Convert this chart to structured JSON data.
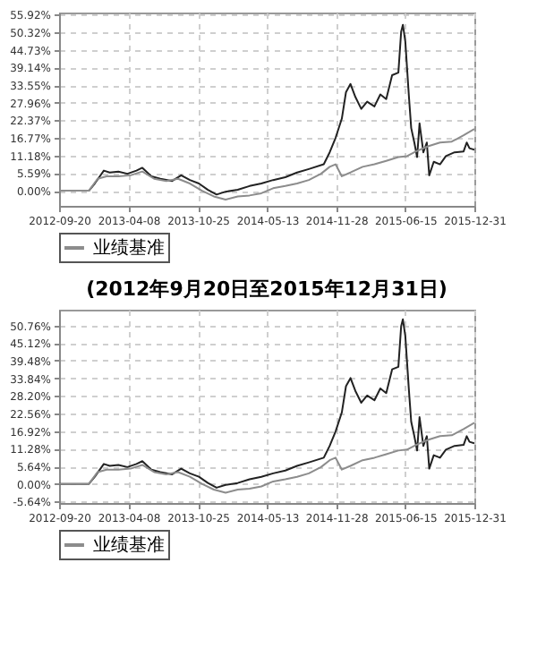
{
  "chart_data": [
    {
      "type": "line",
      "xlim": [
        "2012-09-20",
        "2015-12-31"
      ],
      "xticks": [
        "2012-09-20",
        "2013-04-08",
        "2013-10-25",
        "2014-05-13",
        "2014-11-28",
        "2015-06-15",
        "2015-12-31"
      ],
      "ylim": [
        -4.8,
        56.6
      ],
      "yticks": [
        {
          "value": 0,
          "label": "0.00%"
        },
        {
          "value": 5.59,
          "label": "5.59%"
        },
        {
          "value": 11.18,
          "label": "11.18%"
        },
        {
          "value": 16.77,
          "label": "16.77%"
        },
        {
          "value": 22.37,
          "label": "22.37%"
        },
        {
          "value": 27.96,
          "label": "27.96%"
        },
        {
          "value": 33.55,
          "label": "33.55%"
        },
        {
          "value": 39.14,
          "label": "39.14%"
        },
        {
          "value": 44.73,
          "label": "44.73%"
        },
        {
          "value": 50.32,
          "label": "50.32%"
        },
        {
          "value": 55.92,
          "label": "55.92%"
        }
      ],
      "grid": true,
      "legend": "bottom",
      "series": [
        {
          "color": "#222222",
          "x": [
            "2012-09-20",
            "2012-12-15",
            "2013-01-01",
            "2013-01-27",
            "2013-02-13",
            "2013-03-10",
            "2013-04-05",
            "2013-05-01",
            "2013-05-18",
            "2013-06-13",
            "2013-07-09",
            "2013-08-12",
            "2013-09-07",
            "2013-10-02",
            "2013-10-28",
            "2013-11-23",
            "2013-12-18",
            "2014-01-13",
            "2014-02-17",
            "2014-03-23",
            "2014-04-26",
            "2014-05-30",
            "2014-07-04",
            "2014-08-07",
            "2014-09-10",
            "2014-10-23",
            "2014-11-09",
            "2014-11-26",
            "2014-12-14",
            "2014-12-26",
            "2015-01-08",
            "2015-01-22",
            "2015-02-08",
            "2015-02-25",
            "2015-03-18",
            "2015-04-04",
            "2015-04-21",
            "2015-05-08",
            "2015-05-26",
            "2015-06-03",
            "2015-06-08",
            "2015-06-15",
            "2015-06-25",
            "2015-07-02",
            "2015-07-11",
            "2015-07-19",
            "2015-07-26",
            "2015-08-06",
            "2015-08-16",
            "2015-08-23",
            "2015-09-05",
            "2015-09-23",
            "2015-10-10",
            "2015-11-04",
            "2015-11-30",
            "2015-12-09",
            "2015-12-17",
            "2015-12-31"
          ],
          "values": [
            0,
            0,
            2.3,
            6.4,
            5.8,
            6.1,
            5.4,
            6.4,
            7.3,
            4.6,
            3.8,
            3.1,
            4.9,
            3.4,
            2.3,
            0.3,
            -1.2,
            -0.3,
            0.3,
            1.5,
            2.3,
            3.4,
            4.3,
            5.8,
            6.9,
            8.4,
            12.2,
            16.8,
            22.9,
            31.3,
            33.9,
            29.8,
            26.0,
            28.3,
            26.8,
            30.6,
            29.1,
            36.7,
            37.5,
            50.5,
            52.7,
            47.4,
            30.6,
            19.9,
            15.3,
            10.7,
            21.4,
            12.2,
            15.3,
            4.9,
            9.2,
            8.4,
            11.0,
            12.2,
            12.5,
            15.3,
            13.5,
            13.0
          ]
        },
        {
          "name": "业绩基准",
          "color": "#8c8c8c",
          "x": [
            "2012-09-20",
            "2012-12-15",
            "2013-01-09",
            "2013-02-04",
            "2013-03-10",
            "2013-04-14",
            "2013-05-18",
            "2013-06-21",
            "2013-07-26",
            "2013-08-29",
            "2013-10-02",
            "2013-11-06",
            "2013-12-10",
            "2014-01-13",
            "2014-02-17",
            "2014-03-23",
            "2014-04-26",
            "2014-05-30",
            "2014-07-04",
            "2014-08-07",
            "2014-09-10",
            "2014-10-15",
            "2014-11-09",
            "2014-11-26",
            "2014-12-14",
            "2015-01-08",
            "2015-02-12",
            "2015-03-18",
            "2015-04-21",
            "2015-05-26",
            "2015-06-20",
            "2015-07-16",
            "2015-08-19",
            "2015-09-23",
            "2015-10-27",
            "2015-11-30",
            "2015-12-31"
          ],
          "values": [
            0,
            0,
            3.8,
            4.6,
            4.6,
            4.9,
            6.1,
            3.8,
            3.1,
            3.8,
            2.3,
            0,
            -1.8,
            -2.8,
            -1.8,
            -1.5,
            -0.8,
            0.8,
            1.5,
            2.3,
            3.4,
            5.4,
            7.6,
            8.4,
            4.6,
            5.8,
            7.6,
            8.4,
            9.5,
            10.7,
            11.0,
            12.5,
            14.1,
            15.3,
            15.6,
            17.6,
            19.6
          ]
        }
      ]
    },
    {
      "type": "line",
      "subtitle": "(2012年9月20日至2015年12月31日)",
      "xlim": [
        "2012-09-20",
        "2015-12-31"
      ],
      "xticks": [
        "2012-09-20",
        "2013-04-08",
        "2013-10-25",
        "2014-05-13",
        "2014-11-28",
        "2015-06-15",
        "2015-12-31"
      ],
      "ylim": [
        -6.1,
        55.8
      ],
      "yticks": [
        {
          "value": -5.64,
          "label": "-5.64%"
        },
        {
          "value": 0,
          "label": "0.00%"
        },
        {
          "value": 5.64,
          "label": "5.64%"
        },
        {
          "value": 11.28,
          "label": "11.28%"
        },
        {
          "value": 16.92,
          "label": "16.92%"
        },
        {
          "value": 22.56,
          "label": "22.56%"
        },
        {
          "value": 28.2,
          "label": "28.20%"
        },
        {
          "value": 33.84,
          "label": "33.84%"
        },
        {
          "value": 39.48,
          "label": "39.48%"
        },
        {
          "value": 45.12,
          "label": "45.12%"
        },
        {
          "value": 50.76,
          "label": "50.76%"
        }
      ],
      "grid": true,
      "legend": "bottom",
      "series": [
        {
          "color": "#222222",
          "x": [
            "2012-09-20",
            "2012-12-15",
            "2013-01-01",
            "2013-01-27",
            "2013-02-13",
            "2013-03-10",
            "2013-04-05",
            "2013-05-01",
            "2013-05-18",
            "2013-06-13",
            "2013-07-09",
            "2013-08-12",
            "2013-09-07",
            "2013-10-02",
            "2013-10-28",
            "2013-11-23",
            "2013-12-18",
            "2014-01-13",
            "2014-02-17",
            "2014-03-23",
            "2014-04-26",
            "2014-05-30",
            "2014-07-04",
            "2014-08-07",
            "2014-09-10",
            "2014-10-23",
            "2014-11-09",
            "2014-11-26",
            "2014-12-14",
            "2014-12-26",
            "2015-01-08",
            "2015-01-22",
            "2015-02-08",
            "2015-02-25",
            "2015-03-18",
            "2015-04-04",
            "2015-04-21",
            "2015-05-08",
            "2015-05-26",
            "2015-06-03",
            "2015-06-08",
            "2015-06-15",
            "2015-06-25",
            "2015-07-02",
            "2015-07-11",
            "2015-07-19",
            "2015-07-26",
            "2015-08-06",
            "2015-08-16",
            "2015-08-23",
            "2015-09-05",
            "2015-09-23",
            "2015-10-10",
            "2015-11-04",
            "2015-11-30",
            "2015-12-09",
            "2015-12-17",
            "2015-12-31"
          ],
          "values": [
            0,
            0,
            2.3,
            6.4,
            5.8,
            6.1,
            5.4,
            6.4,
            7.3,
            4.6,
            3.8,
            3.1,
            4.9,
            3.4,
            2.3,
            0.3,
            -1.2,
            -0.3,
            0.3,
            1.5,
            2.3,
            3.4,
            4.3,
            5.8,
            6.9,
            8.4,
            12.2,
            16.8,
            22.9,
            31.3,
            33.9,
            29.8,
            26.0,
            28.3,
            26.8,
            30.6,
            29.1,
            36.7,
            37.5,
            50.5,
            52.7,
            47.4,
            30.6,
            19.9,
            15.3,
            10.7,
            21.4,
            12.2,
            15.3,
            4.9,
            9.2,
            8.4,
            11.0,
            12.2,
            12.5,
            15.3,
            13.5,
            13.0
          ]
        },
        {
          "name": "业绩基准",
          "color": "#8c8c8c",
          "x": [
            "2012-09-20",
            "2012-12-15",
            "2013-01-09",
            "2013-02-04",
            "2013-03-10",
            "2013-04-14",
            "2013-05-18",
            "2013-06-21",
            "2013-07-26",
            "2013-08-29",
            "2013-10-02",
            "2013-11-06",
            "2013-12-10",
            "2014-01-13",
            "2014-02-17",
            "2014-03-23",
            "2014-04-26",
            "2014-05-30",
            "2014-07-04",
            "2014-08-07",
            "2014-09-10",
            "2014-10-15",
            "2014-11-09",
            "2014-11-26",
            "2014-12-14",
            "2015-01-08",
            "2015-02-12",
            "2015-03-18",
            "2015-04-21",
            "2015-05-26",
            "2015-06-20",
            "2015-07-16",
            "2015-08-19",
            "2015-09-23",
            "2015-10-27",
            "2015-11-30",
            "2015-12-31"
          ],
          "values": [
            0,
            0,
            3.8,
            4.6,
            4.6,
            4.9,
            6.1,
            3.8,
            3.1,
            3.8,
            2.3,
            0,
            -1.8,
            -2.8,
            -1.8,
            -1.5,
            -0.8,
            0.8,
            1.5,
            2.3,
            3.4,
            5.4,
            7.6,
            8.4,
            4.6,
            5.8,
            7.6,
            8.4,
            9.5,
            10.7,
            11.0,
            12.5,
            14.1,
            15.3,
            15.6,
            17.6,
            19.6
          ]
        }
      ]
    }
  ]
}
